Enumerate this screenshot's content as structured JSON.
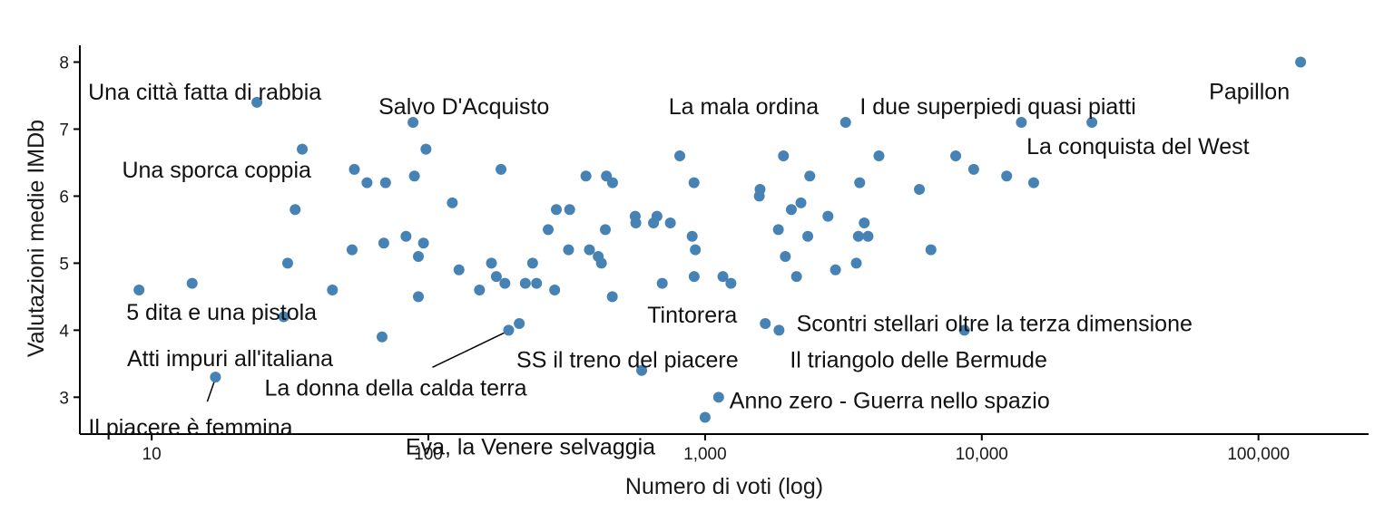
{
  "chart_data": {
    "type": "scatter",
    "xlabel": "Numero di voti (log)",
    "ylabel": "Valutazioni medie IMDb",
    "x_scale": "log10",
    "xlim": [
      5.5,
      250000
    ],
    "ylim": [
      2.45,
      8.25
    ],
    "x_ticks": [
      10,
      100,
      1000,
      10000,
      100000
    ],
    "x_tick_labels": [
      "10",
      "100",
      "1,000",
      "10,000",
      "100,000"
    ],
    "y_ticks": [
      3,
      4,
      5,
      6,
      7,
      8
    ],
    "y_tick_labels": [
      "3",
      "4",
      "5",
      "6",
      "7",
      "8"
    ],
    "grid": false,
    "legend": "none",
    "point_color": "#4682B4",
    "points": [
      [
        9,
        4.6
      ],
      [
        14,
        4.7
      ],
      [
        17,
        3.3
      ],
      [
        24,
        7.4
      ],
      [
        30,
        4.2
      ],
      [
        31,
        5.0
      ],
      [
        33,
        5.8
      ],
      [
        35,
        6.7
      ],
      [
        45,
        4.6
      ],
      [
        53,
        5.2
      ],
      [
        54,
        6.4
      ],
      [
        60,
        6.2
      ],
      [
        68,
        3.9
      ],
      [
        69,
        5.3
      ],
      [
        70,
        6.2
      ],
      [
        83,
        5.4
      ],
      [
        88,
        7.1
      ],
      [
        89,
        6.3
      ],
      [
        92,
        4.5
      ],
      [
        92,
        5.1
      ],
      [
        96,
        5.3
      ],
      [
        98,
        6.7
      ],
      [
        122,
        5.9
      ],
      [
        129,
        4.9
      ],
      [
        153,
        4.6
      ],
      [
        169,
        5.0
      ],
      [
        176,
        4.8
      ],
      [
        183,
        6.4
      ],
      [
        189,
        4.7
      ],
      [
        195,
        4.0
      ],
      [
        213,
        4.1
      ],
      [
        224,
        4.7
      ],
      [
        238,
        5.0
      ],
      [
        246,
        4.7
      ],
      [
        271,
        5.5
      ],
      [
        286,
        4.6
      ],
      [
        290,
        5.8
      ],
      [
        321,
        5.2
      ],
      [
        324,
        5.8
      ],
      [
        371,
        6.3
      ],
      [
        382,
        5.2
      ],
      [
        411,
        5.1
      ],
      [
        422,
        5.0
      ],
      [
        436,
        5.5
      ],
      [
        440,
        6.3
      ],
      [
        462,
        4.5
      ],
      [
        463,
        6.2
      ],
      [
        559,
        5.7
      ],
      [
        562,
        5.6
      ],
      [
        590,
        3.4
      ],
      [
        651,
        5.6
      ],
      [
        670,
        5.7
      ],
      [
        700,
        4.7
      ],
      [
        749,
        5.6
      ],
      [
        810,
        6.6
      ],
      [
        898,
        5.4
      ],
      [
        912,
        6.2
      ],
      [
        913,
        4.8
      ],
      [
        922,
        5.2
      ],
      [
        1000,
        2.7
      ],
      [
        1119,
        3.0
      ],
      [
        1160,
        4.8
      ],
      [
        1240,
        4.7
      ],
      [
        1570,
        6.0
      ],
      [
        1580,
        6.1
      ],
      [
        1650,
        4.1
      ],
      [
        1840,
        5.5
      ],
      [
        1850,
        4.0
      ],
      [
        1920,
        6.6
      ],
      [
        1950,
        5.1
      ],
      [
        2050,
        5.8
      ],
      [
        2140,
        4.8
      ],
      [
        2220,
        5.9
      ],
      [
        2350,
        5.4
      ],
      [
        2390,
        6.3
      ],
      [
        2780,
        5.7
      ],
      [
        2960,
        4.9
      ],
      [
        3220,
        7.1
      ],
      [
        3520,
        5.0
      ],
      [
        3580,
        5.4
      ],
      [
        3620,
        6.2
      ],
      [
        3760,
        5.6
      ],
      [
        3880,
        5.4
      ],
      [
        4250,
        6.6
      ],
      [
        5950,
        6.1
      ],
      [
        6550,
        5.2
      ],
      [
        8050,
        6.6
      ],
      [
        8650,
        4.0
      ],
      [
        9350,
        6.4
      ],
      [
        12300,
        6.3
      ],
      [
        13900,
        7.1
      ],
      [
        15400,
        6.2
      ],
      [
        25000,
        7.1
      ],
      [
        142000,
        8.0
      ]
    ],
    "annotations": [
      {
        "text": "Una città fatta di rabbia",
        "x": 24,
        "y": 7.4
      },
      {
        "text": "Salvo D'Acquisto",
        "x": 88,
        "y": 7.1
      },
      {
        "text": "La mala ordina",
        "x": 3220,
        "y": 7.1
      },
      {
        "text": "I due superpiedi quasi piatti",
        "x": 13900,
        "y": 7.1
      },
      {
        "text": "Papillon",
        "x": 142000,
        "y": 8.0
      },
      {
        "text": "La conquista del West",
        "x": 25000,
        "y": 7.1
      },
      {
        "text": "Una sporca coppia",
        "x": 54,
        "y": 6.4
      },
      {
        "text": "5 dita e una pistola",
        "x": 9,
        "y": 4.6
      },
      {
        "text": "Atti impuri all'italiana",
        "x": 68,
        "y": 3.9
      },
      {
        "text": "La donna della calda terra",
        "x": 195,
        "y": 4.0
      },
      {
        "text": "Il piacere è femmina",
        "x": 17,
        "y": 3.3
      },
      {
        "text": "Tintorera",
        "x": 1650,
        "y": 4.1
      },
      {
        "text": "Scontri stellari oltre la terza dimensione",
        "x": 8650,
        "y": 4.0
      },
      {
        "text": "SS il treno del piacere",
        "x": 590,
        "y": 3.4
      },
      {
        "text": "Il triangolo delle Bermude",
        "x": 1850,
        "y": 4.0
      },
      {
        "text": "Anno zero - Guerra nello spazio",
        "x": 1119,
        "y": 3.0
      },
      {
        "text": "Eva, la Venere selvaggia",
        "x": 1000,
        "y": 2.7
      }
    ]
  }
}
